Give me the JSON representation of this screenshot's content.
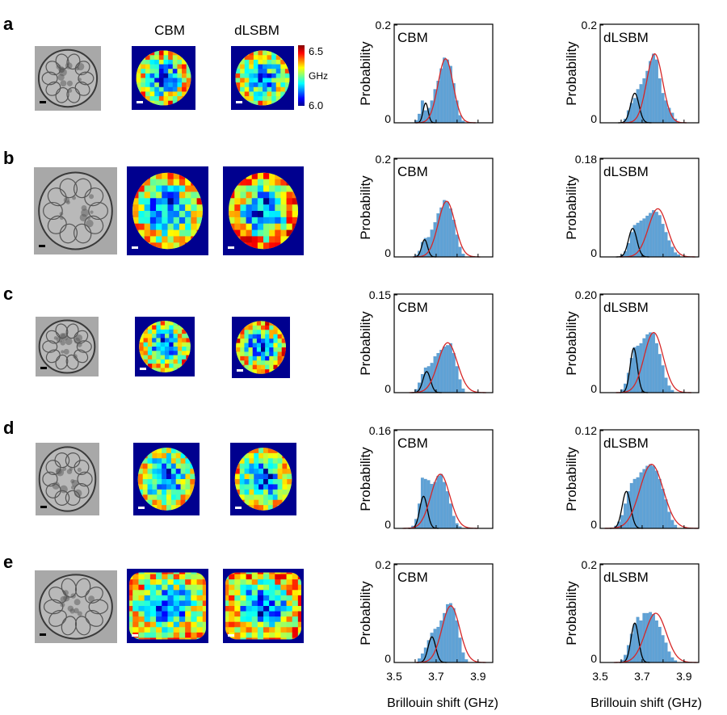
{
  "figure": {
    "column_titles": [
      "CBM",
      "dLSBM"
    ],
    "colorbar": {
      "max_label": "6.5",
      "unit": "GHz",
      "min_label": "6.0"
    },
    "xlabel": "Brillouin shift (GHz)",
    "ylabel": "Probability",
    "x_ticks": [
      "3.5",
      "3.7",
      "3.9"
    ]
  },
  "chart_data": [
    {
      "type": "bar",
      "row": "a",
      "panel": "CBM",
      "title": "CBM",
      "ylabel": "Probability",
      "xlabel": "",
      "xlim": [
        3.5,
        3.97
      ],
      "ylim": [
        0,
        0.2
      ],
      "y_max_label": "0.2",
      "y_min_label": "0",
      "x": [
        3.605,
        3.62,
        3.635,
        3.65,
        3.665,
        3.68,
        3.695,
        3.71,
        3.725,
        3.74,
        3.755,
        3.77,
        3.785,
        3.8,
        3.815,
        3.83
      ],
      "values": [
        0.005,
        0.018,
        0.045,
        0.025,
        0.03,
        0.045,
        0.068,
        0.085,
        0.11,
        0.132,
        0.128,
        0.115,
        0.08,
        0.045,
        0.015,
        0.004
      ],
      "components": [
        {
          "name": "black",
          "mean": 3.65,
          "sd": 0.012,
          "peak": 0.04
        },
        {
          "name": "red",
          "mean": 3.745,
          "sd": 0.036,
          "peak": 0.13
        }
      ]
    },
    {
      "type": "bar",
      "row": "a",
      "panel": "dLSBM",
      "title": "dLSBM",
      "ylabel": "Probability",
      "xlabel": "",
      "xlim": [
        3.5,
        3.97
      ],
      "ylim": [
        0,
        0.2
      ],
      "y_max_label": "0.2",
      "y_min_label": "0",
      "x": [
        3.62,
        3.635,
        3.65,
        3.665,
        3.68,
        3.695,
        3.71,
        3.725,
        3.74,
        3.755,
        3.77,
        3.785,
        3.8,
        3.815,
        3.83,
        3.845,
        3.86
      ],
      "values": [
        0.008,
        0.025,
        0.04,
        0.05,
        0.068,
        0.078,
        0.09,
        0.105,
        0.125,
        0.14,
        0.128,
        0.09,
        0.06,
        0.045,
        0.03,
        0.02,
        0.008
      ],
      "components": [
        {
          "name": "black",
          "mean": 3.665,
          "sd": 0.02,
          "peak": 0.06
        },
        {
          "name": "red",
          "mean": 3.76,
          "sd": 0.038,
          "peak": 0.14
        }
      ]
    },
    {
      "type": "bar",
      "row": "b",
      "panel": "CBM",
      "title": "CBM",
      "ylabel": "Probability",
      "xlabel": "",
      "xlim": [
        3.5,
        3.97
      ],
      "ylim": [
        0,
        0.2
      ],
      "y_max_label": "0.2",
      "y_min_label": "0",
      "x": [
        3.605,
        3.62,
        3.635,
        3.65,
        3.665,
        3.68,
        3.695,
        3.71,
        3.725,
        3.74,
        3.755,
        3.77,
        3.785,
        3.8,
        3.815,
        3.83
      ],
      "values": [
        0.004,
        0.012,
        0.03,
        0.038,
        0.04,
        0.055,
        0.07,
        0.088,
        0.1,
        0.115,
        0.112,
        0.098,
        0.075,
        0.045,
        0.02,
        0.006
      ],
      "components": [
        {
          "name": "black",
          "mean": 3.645,
          "sd": 0.014,
          "peak": 0.035
        },
        {
          "name": "red",
          "mean": 3.75,
          "sd": 0.04,
          "peak": 0.113
        }
      ]
    },
    {
      "type": "bar",
      "row": "b",
      "panel": "dLSBM",
      "title": "dLSBM",
      "ylabel": "Probability",
      "xlabel": "",
      "xlim": [
        3.5,
        3.97
      ],
      "ylim": [
        0,
        0.18
      ],
      "y_max_label": "0.18",
      "y_min_label": "0",
      "x": [
        3.605,
        3.62,
        3.635,
        3.65,
        3.665,
        3.68,
        3.695,
        3.71,
        3.725,
        3.74,
        3.755,
        3.77,
        3.785,
        3.8,
        3.815,
        3.83,
        3.845,
        3.86,
        3.875
      ],
      "values": [
        0.004,
        0.01,
        0.025,
        0.045,
        0.058,
        0.062,
        0.066,
        0.07,
        0.075,
        0.08,
        0.085,
        0.082,
        0.076,
        0.06,
        0.045,
        0.03,
        0.018,
        0.008,
        0.004
      ],
      "components": [
        {
          "name": "black",
          "mean": 3.655,
          "sd": 0.02,
          "peak": 0.052
        },
        {
          "name": "red",
          "mean": 3.775,
          "sd": 0.045,
          "peak": 0.088
        }
      ]
    },
    {
      "type": "bar",
      "row": "c",
      "panel": "CBM",
      "title": "CBM",
      "ylabel": "Probability",
      "xlabel": "",
      "xlim": [
        3.5,
        3.97
      ],
      "ylim": [
        0,
        0.15
      ],
      "y_max_label": "0.15",
      "y_min_label": "0",
      "x": [
        3.605,
        3.62,
        3.635,
        3.65,
        3.665,
        3.68,
        3.695,
        3.71,
        3.725,
        3.74,
        3.755,
        3.77,
        3.785,
        3.8,
        3.815,
        3.83
      ],
      "values": [
        0.005,
        0.015,
        0.028,
        0.038,
        0.04,
        0.045,
        0.055,
        0.06,
        0.065,
        0.07,
        0.072,
        0.075,
        0.06,
        0.04,
        0.02,
        0.006
      ],
      "components": [
        {
          "name": "black",
          "mean": 3.655,
          "sd": 0.018,
          "peak": 0.032
        },
        {
          "name": "red",
          "mean": 3.755,
          "sd": 0.046,
          "peak": 0.076
        }
      ]
    },
    {
      "type": "bar",
      "row": "c",
      "panel": "dLSBM",
      "title": "dLSBM",
      "ylabel": "Probability",
      "xlabel": "",
      "xlim": [
        3.5,
        3.97
      ],
      "ylim": [
        0,
        0.2
      ],
      "y_max_label": "0.20",
      "y_min_label": "0",
      "x": [
        3.605,
        3.62,
        3.635,
        3.65,
        3.665,
        3.68,
        3.695,
        3.71,
        3.725,
        3.74,
        3.755,
        3.77,
        3.785,
        3.8,
        3.815,
        3.83,
        3.845
      ],
      "values": [
        0.006,
        0.018,
        0.04,
        0.07,
        0.092,
        0.095,
        0.1,
        0.11,
        0.118,
        0.122,
        0.12,
        0.1,
        0.078,
        0.055,
        0.03,
        0.014,
        0.005
      ],
      "components": [
        {
          "name": "black",
          "mean": 3.66,
          "sd": 0.017,
          "peak": 0.09
        },
        {
          "name": "red",
          "mean": 3.755,
          "sd": 0.045,
          "peak": 0.122
        }
      ]
    },
    {
      "type": "bar",
      "row": "d",
      "panel": "CBM",
      "title": "CBM",
      "ylabel": "Probability",
      "xlabel": "",
      "xlim": [
        3.5,
        3.97
      ],
      "ylim": [
        0,
        0.16
      ],
      "y_max_label": "0.16",
      "y_min_label": "0",
      "x": [
        3.59,
        3.605,
        3.62,
        3.635,
        3.65,
        3.665,
        3.68,
        3.695,
        3.71,
        3.725,
        3.74,
        3.755,
        3.77,
        3.785,
        3.8,
        3.815
      ],
      "values": [
        0.004,
        0.015,
        0.04,
        0.082,
        0.08,
        0.078,
        0.072,
        0.075,
        0.085,
        0.088,
        0.075,
        0.06,
        0.04,
        0.02,
        0.008,
        0.003
      ],
      "components": [
        {
          "name": "black",
          "mean": 3.64,
          "sd": 0.018,
          "peak": 0.052
        },
        {
          "name": "red",
          "mean": 3.72,
          "sd": 0.045,
          "peak": 0.088
        }
      ]
    },
    {
      "type": "bar",
      "row": "d",
      "panel": "dLSBM",
      "title": "dLSBM",
      "ylabel": "Probability",
      "xlabel": "",
      "xlim": [
        3.5,
        3.97
      ],
      "ylim": [
        0,
        0.12
      ],
      "y_max_label": "0.12",
      "y_min_label": "0",
      "x": [
        3.575,
        3.59,
        3.605,
        3.62,
        3.635,
        3.65,
        3.665,
        3.68,
        3.695,
        3.71,
        3.725,
        3.74,
        3.755,
        3.77,
        3.785,
        3.8,
        3.815,
        3.83,
        3.845,
        3.86
      ],
      "values": [
        0.003,
        0.008,
        0.016,
        0.03,
        0.045,
        0.055,
        0.06,
        0.062,
        0.068,
        0.072,
        0.076,
        0.078,
        0.076,
        0.07,
        0.06,
        0.048,
        0.035,
        0.02,
        0.01,
        0.004
      ],
      "components": [
        {
          "name": "black",
          "mean": 3.625,
          "sd": 0.02,
          "peak": 0.045
        },
        {
          "name": "red",
          "mean": 3.745,
          "sd": 0.056,
          "peak": 0.078
        }
      ]
    },
    {
      "type": "bar",
      "row": "e",
      "panel": "CBM",
      "title": "CBM",
      "ylabel": "Probability",
      "xlabel": "Brillouin shift (GHz)",
      "xlim": [
        3.5,
        3.97
      ],
      "ylim": [
        0,
        0.2
      ],
      "y_max_label": "0.2",
      "y_min_label": "0",
      "x": [
        3.62,
        3.635,
        3.65,
        3.665,
        3.68,
        3.695,
        3.71,
        3.725,
        3.74,
        3.755,
        3.77,
        3.785,
        3.8,
        3.815,
        3.83,
        3.845
      ],
      "values": [
        0.008,
        0.018,
        0.03,
        0.045,
        0.06,
        0.068,
        0.072,
        0.085,
        0.1,
        0.118,
        0.12,
        0.11,
        0.085,
        0.05,
        0.02,
        0.006
      ],
      "components": [
        {
          "name": "black",
          "mean": 3.68,
          "sd": 0.018,
          "peak": 0.052
        },
        {
          "name": "red",
          "mean": 3.77,
          "sd": 0.042,
          "peak": 0.115
        }
      ]
    },
    {
      "type": "bar",
      "row": "e",
      "panel": "dLSBM",
      "title": "dLSBM",
      "ylabel": "Probability",
      "xlabel": "Brillouin shift (GHz)",
      "xlim": [
        3.5,
        3.97
      ],
      "ylim": [
        0,
        0.2
      ],
      "y_max_label": "0.2",
      "y_min_label": "0",
      "x": [
        3.605,
        3.62,
        3.635,
        3.65,
        3.665,
        3.68,
        3.695,
        3.71,
        3.725,
        3.74,
        3.755,
        3.77,
        3.785,
        3.8,
        3.815,
        3.83,
        3.845,
        3.86
      ],
      "values": [
        0.005,
        0.015,
        0.035,
        0.058,
        0.078,
        0.092,
        0.085,
        0.1,
        0.1,
        0.102,
        0.098,
        0.085,
        0.072,
        0.055,
        0.04,
        0.022,
        0.01,
        0.004
      ],
      "components": [
        {
          "name": "black",
          "mean": 3.665,
          "sd": 0.018,
          "peak": 0.08
        },
        {
          "name": "red",
          "mean": 3.765,
          "sd": 0.05,
          "peak": 0.1
        }
      ]
    }
  ],
  "rows": [
    {
      "label": "a",
      "scale_bar_color": "#000000",
      "maps": [
        {
          "blob": "round",
          "warmth": 0.55
        },
        {
          "blob": "round",
          "warmth": 0.45
        }
      ]
    },
    {
      "label": "b",
      "scale_bar_color": "#000000",
      "maps": [
        {
          "blob": "round",
          "warmth": 0.6
        },
        {
          "blob": "round",
          "warmth": 0.7
        }
      ]
    },
    {
      "label": "c",
      "scale_bar_color": "#000000",
      "maps": [
        {
          "blob": "round",
          "warmth": 0.55
        },
        {
          "blob": "round",
          "warmth": 0.6
        }
      ]
    },
    {
      "label": "d",
      "scale_bar_color": "#000000",
      "maps": [
        {
          "blob": "round",
          "warmth": 0.4
        },
        {
          "blob": "round",
          "warmth": 0.5
        }
      ]
    },
    {
      "label": "e",
      "scale_bar_color": "#000000",
      "maps": [
        {
          "blob": "square",
          "warmth": 0.5
        },
        {
          "blob": "square",
          "warmth": 0.55
        }
      ]
    }
  ],
  "colors": {
    "bar": "#5fa2d6",
    "bar_edge": "#4a8cc2",
    "red_fit": "#d62728",
    "black_fit": "#000000",
    "jet_low": "#00008f",
    "jet_high": "#800000"
  }
}
